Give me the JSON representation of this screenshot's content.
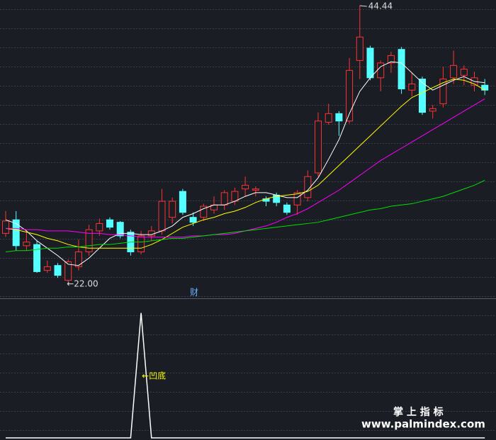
{
  "chart_data": [
    {
      "type": "candlestick",
      "open": [
        26.0,
        27.1,
        25.0,
        25.1,
        23.0,
        23.4,
        22.2,
        23.3,
        24.5,
        26.2,
        27.1,
        26.9,
        26.1,
        24.5,
        25.8,
        26.2,
        27.3,
        29.4,
        27.3,
        27.3,
        27.9,
        28.3,
        28.6,
        29.6,
        29.5,
        28.8,
        29.1,
        28.3,
        28.3,
        28.9,
        30.9,
        35.0,
        35.7,
        35.1,
        40.0,
        41.0,
        38.6,
        39.8,
        40.9,
        37.6,
        38.5,
        35.9,
        36.5,
        38.6,
        38.8,
        38.0,
        38.0
      ],
      "high": [
        27.8,
        27.8,
        26.2,
        25.4,
        23.8,
        23.6,
        23.9,
        25.5,
        26.7,
        27.2,
        27.3,
        27.0,
        26.3,
        26.2,
        26.6,
        29.6,
        28.9,
        29.6,
        27.7,
        28.4,
        29.0,
        29.5,
        29.7,
        30.6,
        29.8,
        29.0,
        29.3,
        28.5,
        29.5,
        31.1,
        35.8,
        36.5,
        35.9,
        40.2,
        44.44,
        41.2,
        40.0,
        40.7,
        41.1,
        39.0,
        38.7,
        36.4,
        39.5,
        40.8,
        39.6,
        39.1,
        38.5
      ],
      "low": [
        25.7,
        24.6,
        24.6,
        22.8,
        22.8,
        22.4,
        22.0,
        23.0,
        24.2,
        25.8,
        26.3,
        25.6,
        24.2,
        24.3,
        25.4,
        25.9,
        26.8,
        27.5,
        26.6,
        27.0,
        27.6,
        27.9,
        28.3,
        29.0,
        29.0,
        28.2,
        28.2,
        27.5,
        27.5,
        28.6,
        30.6,
        34.8,
        33.9,
        34.9,
        38.5,
        38.4,
        37.5,
        39.0,
        37.3,
        37.1,
        35.6,
        35.3,
        36.2,
        38.1,
        38.0,
        37.5,
        37.2
      ],
      "close": [
        27.0,
        25.0,
        25.3,
        22.9,
        23.3,
        22.6,
        23.7,
        24.5,
        26.3,
        26.8,
        26.5,
        25.8,
        24.5,
        25.8,
        26.2,
        28.6,
        28.6,
        27.7,
        26.9,
        28.2,
        28.3,
        29.3,
        29.4,
        29.9,
        29.6,
        28.6,
        28.5,
        27.7,
        29.3,
        30.6,
        35.1,
        35.7,
        35.1,
        39.2,
        41.9,
        38.6,
        39.8,
        40.4,
        37.7,
        38.1,
        35.8,
        36.1,
        38.5,
        39.6,
        39.3,
        38.6,
        37.6
      ],
      "up_color": "#ff3232",
      "down_color": "#54ffff",
      "series": [
        {
          "color": "#ffffff",
          "values": [
            27.1,
            26.8,
            26.2,
            25.4,
            24.8,
            24.2,
            23.5,
            23.4,
            24.0,
            24.8,
            25.6,
            26.0,
            26.0,
            25.9,
            25.9,
            26.2,
            26.6,
            27.3,
            27.6,
            28.0,
            28.3,
            28.3,
            28.6,
            29.0,
            29.3,
            29.3,
            29.1,
            28.9,
            28.9,
            29.5,
            30.5,
            32.0,
            33.6,
            35.7,
            37.5,
            38.6,
            39.5,
            39.9,
            39.8,
            39.0,
            38.2,
            37.6,
            38.0,
            38.4,
            38.7,
            38.3,
            38.2
          ]
        },
        {
          "color": "#ffff00",
          "values": [
            26.4,
            26.3,
            26.1,
            25.9,
            25.6,
            25.4,
            25.1,
            24.9,
            24.8,
            24.8,
            24.8,
            24.8,
            24.8,
            24.8,
            25.1,
            25.5,
            26.0,
            26.5,
            26.8,
            27.1,
            27.3,
            27.6,
            27.8,
            28.1,
            28.5,
            28.8,
            29.0,
            29.1,
            29.2,
            29.4,
            29.9,
            30.7,
            31.5,
            32.3,
            33.1,
            33.9,
            34.7,
            35.5,
            36.3,
            37.0,
            37.4,
            37.8,
            38.2,
            38.5,
            38.4,
            38.1,
            37.6
          ]
        },
        {
          "color": "#ff00ff",
          "values": [
            26.4,
            26.4,
            26.3,
            26.3,
            26.2,
            26.2,
            26.2,
            26.1,
            26.0,
            26.0,
            25.9,
            25.9,
            25.8,
            25.7,
            25.7,
            25.7,
            25.7,
            25.7,
            25.8,
            25.8,
            25.9,
            25.9,
            26.0,
            26.2,
            26.4,
            26.6,
            26.9,
            27.3,
            27.6,
            28.0,
            28.5,
            29.0,
            29.5,
            30.1,
            30.7,
            31.3,
            31.9,
            32.4,
            32.9,
            33.4,
            33.9,
            34.4,
            34.9,
            35.4,
            35.9,
            36.4,
            36.9
          ]
        },
        {
          "color": "#00e000",
          "values": [
            24.5,
            24.6,
            24.6,
            24.7,
            24.8,
            24.8,
            24.9,
            24.9,
            25.0,
            25.1,
            25.1,
            25.2,
            25.3,
            25.3,
            25.4,
            25.5,
            25.6,
            25.6,
            25.7,
            25.8,
            25.9,
            26.0,
            26.1,
            26.2,
            26.3,
            26.4,
            26.5,
            26.6,
            26.7,
            26.8,
            26.9,
            27.1,
            27.3,
            27.5,
            27.7,
            27.9,
            28.0,
            28.2,
            28.3,
            28.4,
            28.6,
            28.8,
            29.0,
            29.3,
            29.6,
            29.9,
            30.3
          ]
        }
      ],
      "ylim": [
        20.8,
        44.9
      ],
      "annotations": [
        {
          "text": "44.44"
        },
        {
          "text": "←22.00"
        },
        {
          "text": "财"
        }
      ]
    },
    {
      "type": "line",
      "color": "#ffffff",
      "values": [
        0,
        0,
        0,
        0,
        0,
        0,
        0,
        0,
        0,
        0,
        0,
        0,
        0,
        1,
        0,
        0,
        0,
        0,
        0,
        0,
        0,
        0,
        0,
        0,
        0,
        0,
        0,
        0,
        0,
        0,
        0,
        0,
        0,
        0,
        0,
        0,
        0,
        0,
        0,
        0,
        0,
        0,
        0,
        0,
        0,
        0,
        0
      ],
      "ylim": [
        0,
        1.1
      ],
      "annotations": [
        {
          "text": "←凹底"
        }
      ],
      "watermark": [
        "掌 上 指 标",
        "www.palmindex.com"
      ]
    }
  ]
}
